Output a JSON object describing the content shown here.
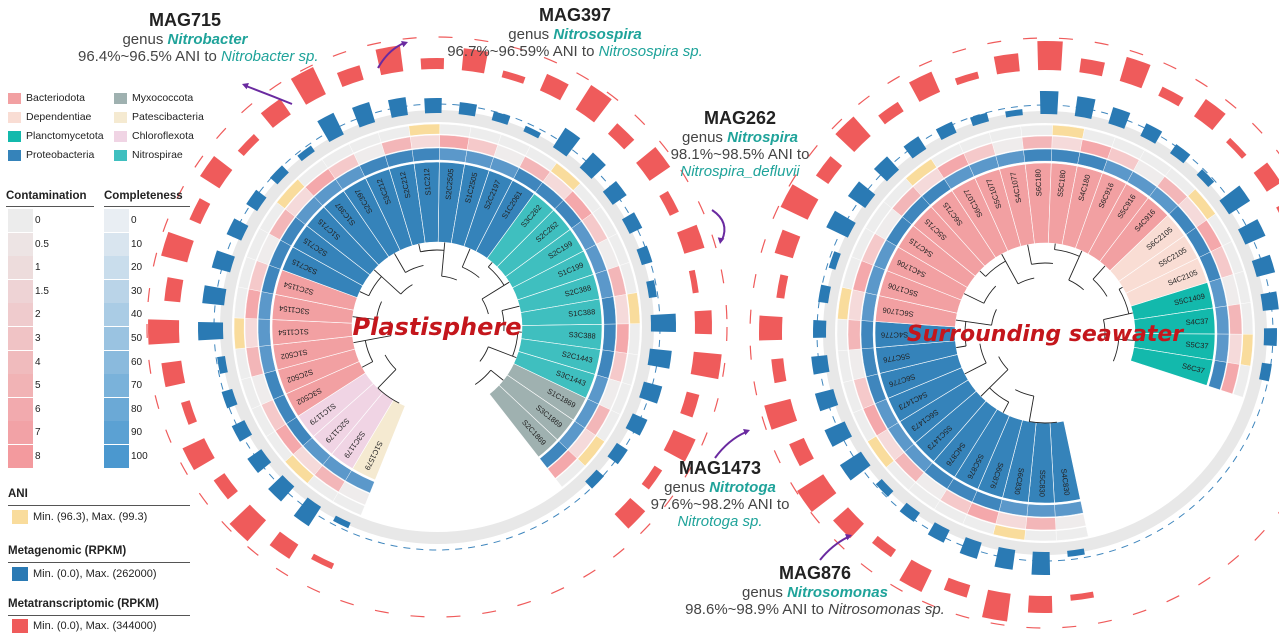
{
  "phylum_legend": {
    "items": [
      {
        "label": "Bacteriodota",
        "color": "#f2a0a2"
      },
      {
        "label": "Myxococcota",
        "color": "#9fb1b0"
      },
      {
        "label": "Dependentiae",
        "color": "#f9ddd4"
      },
      {
        "label": "Patescibacteria",
        "color": "#f5ead1"
      },
      {
        "label": "Planctomycetota",
        "color": "#13b9ac"
      },
      {
        "label": "Chloroflexota",
        "color": "#f0d4e4"
      },
      {
        "label": "Proteobacteria",
        "color": "#3583ba"
      },
      {
        "label": "Nitrospirae",
        "color": "#3fbfbf"
      }
    ]
  },
  "contamination": {
    "title": "Contamination",
    "ticks": [
      "0",
      "0.5",
      "1",
      "1.5",
      "2",
      "3",
      "4",
      "5",
      "6",
      "7",
      "8"
    ]
  },
  "completeness": {
    "title": "Completeness",
    "ticks": [
      "0",
      "10",
      "20",
      "30",
      "40",
      "50",
      "60",
      "70",
      "80",
      "90",
      "100"
    ]
  },
  "ani": {
    "title": "ANI",
    "range": "Min. (96.3), Max. (99.3)",
    "color": "#f9dc9c"
  },
  "metagenomic": {
    "title": "Metagenomic (RPKM)",
    "range": "Min. (0.0), Max. (262000)",
    "color": "#2a7ab4"
  },
  "metatranscriptomic": {
    "title": "Metatranscriptomic (RPKM)",
    "range": "Min. (0.0), Max. (344000)",
    "color": "#ef5b5b"
  },
  "trees": {
    "left": {
      "title": "Plastisphere",
      "leaves": [
        {
          "l": "S1C1579",
          "c": "#f5ead1"
        },
        {
          "l": "S3C1179",
          "c": "#f0d4e4"
        },
        {
          "l": "S2C1179",
          "c": "#f0d4e4"
        },
        {
          "l": "S1C1179",
          "c": "#f0d4e4"
        },
        {
          "l": "S3C502",
          "c": "#f2a0a2"
        },
        {
          "l": "S2C502",
          "c": "#f2a0a2"
        },
        {
          "l": "S1C502",
          "c": "#f2a0a2"
        },
        {
          "l": "S1C1154",
          "c": "#f2a0a2"
        },
        {
          "l": "S3C1154",
          "c": "#f2a0a2"
        },
        {
          "l": "S2C1154",
          "c": "#f2a0a2"
        },
        {
          "l": "S3C715",
          "c": "#3583ba"
        },
        {
          "l": "S2C715",
          "c": "#3583ba"
        },
        {
          "l": "S1C715",
          "c": "#3583ba"
        },
        {
          "l": "S1C397",
          "c": "#3583ba"
        },
        {
          "l": "S2C397",
          "c": "#3583ba"
        },
        {
          "l": "S3C212",
          "c": "#3583ba"
        },
        {
          "l": "S2C212",
          "c": "#3583ba"
        },
        {
          "l": "S1C212",
          "c": "#3583ba"
        },
        {
          "l": "S2C2505",
          "c": "#3583ba"
        },
        {
          "l": "S1C2505",
          "c": "#3583ba"
        },
        {
          "l": "S2C2197",
          "c": "#3583ba"
        },
        {
          "l": "S1C2061",
          "c": "#3583ba"
        },
        {
          "l": "S3C262",
          "c": "#3fbfbf"
        },
        {
          "l": "S2C262",
          "c": "#3fbfbf"
        },
        {
          "l": "S2C199",
          "c": "#3fbfbf"
        },
        {
          "l": "S1C199",
          "c": "#3fbfbf"
        },
        {
          "l": "S2C388",
          "c": "#3fbfbf"
        },
        {
          "l": "S1C388",
          "c": "#3fbfbf"
        },
        {
          "l": "S3C388",
          "c": "#3fbfbf"
        },
        {
          "l": "S2C1443",
          "c": "#3fbfbf"
        },
        {
          "l": "S3C1443",
          "c": "#3fbfbf"
        },
        {
          "l": "S1C1869",
          "c": "#9fb1b0"
        },
        {
          "l": "S3C1869",
          "c": "#9fb1b0"
        },
        {
          "l": "S2C1869",
          "c": "#9fb1b0"
        }
      ]
    },
    "right": {
      "title": "Surrounding seawater",
      "leaves": [
        {
          "l": "S4C830",
          "c": "#3583ba"
        },
        {
          "l": "S5C830",
          "c": "#3583ba"
        },
        {
          "l": "S6C830",
          "c": "#3583ba"
        },
        {
          "l": "S6C876",
          "c": "#3583ba"
        },
        {
          "l": "S5C876",
          "c": "#3583ba"
        },
        {
          "l": "S4C876",
          "c": "#3583ba"
        },
        {
          "l": "S5C1473",
          "c": "#3583ba"
        },
        {
          "l": "S6C1473",
          "c": "#3583ba"
        },
        {
          "l": "S4C1473",
          "c": "#3583ba"
        },
        {
          "l": "S6C776",
          "c": "#3583ba"
        },
        {
          "l": "S5C776",
          "c": "#3583ba"
        },
        {
          "l": "S4C776",
          "c": "#3583ba"
        },
        {
          "l": "S6C1706",
          "c": "#f2a0a2"
        },
        {
          "l": "S5C1706",
          "c": "#f2a0a2"
        },
        {
          "l": "S4C1706",
          "c": "#f2a0a2"
        },
        {
          "l": "S4C715",
          "c": "#f2a0a2"
        },
        {
          "l": "S5C715",
          "c": "#f2a0a2"
        },
        {
          "l": "S6C715",
          "c": "#f2a0a2"
        },
        {
          "l": "S6C1077",
          "c": "#f2a0a2"
        },
        {
          "l": "S5C1077",
          "c": "#f2a0a2"
        },
        {
          "l": "S4C1077",
          "c": "#f2a0a2"
        },
        {
          "l": "S6C180",
          "c": "#f2a0a2"
        },
        {
          "l": "S5C180",
          "c": "#f2a0a2"
        },
        {
          "l": "S4C180",
          "c": "#f2a0a2"
        },
        {
          "l": "S6C916",
          "c": "#f2a0a2"
        },
        {
          "l": "S5C916",
          "c": "#f2a0a2"
        },
        {
          "l": "S4C916",
          "c": "#f2a0a2"
        },
        {
          "l": "S6C2105",
          "c": "#f9ddd4"
        },
        {
          "l": "S5C2105",
          "c": "#f9ddd4"
        },
        {
          "l": "S4C2105",
          "c": "#f9ddd4"
        },
        {
          "l": "S5C1409",
          "c": "#13b9ac"
        },
        {
          "l": "S4C37",
          "c": "#13b9ac"
        },
        {
          "l": "S5C37",
          "c": "#13b9ac"
        },
        {
          "l": "S6C37",
          "c": "#13b9ac"
        }
      ]
    }
  },
  "annotations": [
    {
      "id": "mag715",
      "title": "MAG715",
      "genus_prefix": "genus ",
      "genus": "Nitrobacter",
      "ani": "96.4%~96.5% ANI to ",
      "ref": "Nitrobacter sp."
    },
    {
      "id": "mag397",
      "title": "MAG397",
      "genus_prefix": "genus ",
      "genus": "Nitrosospira",
      "ani": "96.7%~96.59% ANI to ",
      "ref": "Nitrosospira sp."
    },
    {
      "id": "mag262",
      "title": "MAG262",
      "genus_prefix": "genus ",
      "genus": "Nitrospira",
      "ani": "98.1%~98.5% ANI to",
      "ref": "Nitrospira_defluvii"
    },
    {
      "id": "mag1473",
      "title": "MAG1473",
      "genus_prefix": "genus ",
      "genus": "Nitrotoga",
      "ani": "97.6%~98.2% ANI to",
      "ref": "Nitrotoga sp."
    },
    {
      "id": "mag876",
      "title": "MAG876",
      "genus_prefix": "genus ",
      "genus": "Nitrosomonas",
      "ani": "98.6%~98.9% ANI to ",
      "ref": "Nitrosomonas sp."
    }
  ]
}
